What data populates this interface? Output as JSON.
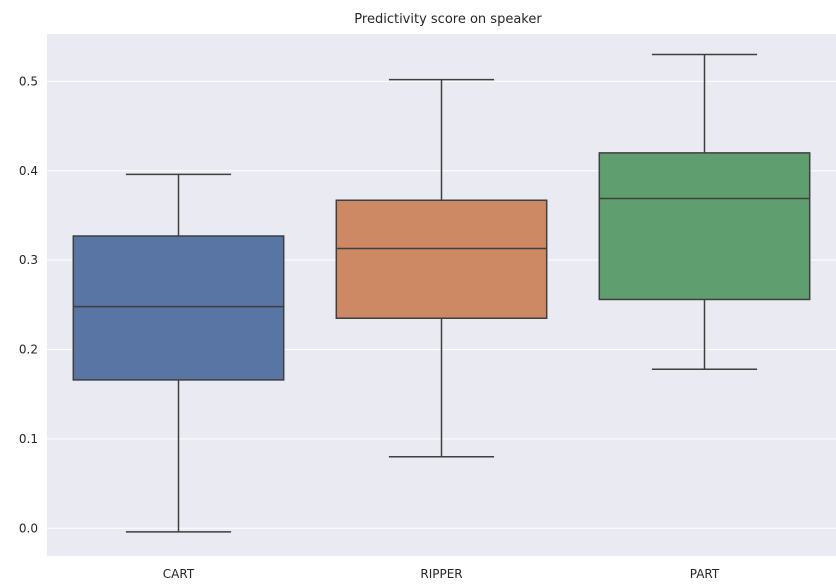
{
  "chart_data": {
    "type": "box",
    "title": "Predictivity score on speaker",
    "xlabel": "",
    "ylabel": "",
    "categories": [
      "CART",
      "RIPPER",
      "PART"
    ],
    "boxes": [
      {
        "name": "CART",
        "whisker_low": -0.004,
        "q1": 0.166,
        "median": 0.248,
        "q3": 0.327,
        "whisker_high": 0.396,
        "color": "#5875a4"
      },
      {
        "name": "RIPPER",
        "whisker_low": 0.08,
        "q1": 0.235,
        "median": 0.313,
        "q3": 0.367,
        "whisker_high": 0.502,
        "color": "#cc8963"
      },
      {
        "name": "PART",
        "whisker_low": 0.178,
        "q1": 0.256,
        "median": 0.369,
        "q3": 0.42,
        "whisker_high": 0.53,
        "color": "#5f9e6e"
      }
    ],
    "yticks": [
      0.0,
      0.1,
      0.2,
      0.3,
      0.4,
      0.5
    ],
    "ytick_labels": [
      "0.0",
      "0.1",
      "0.2",
      "0.3",
      "0.4",
      "0.5"
    ],
    "ylim": [
      -0.031,
      0.553
    ],
    "grid": true,
    "legend": "none",
    "background_color": "#eaeaf2",
    "line_color": "#3f3f3f",
    "grid_color": "#ffffff"
  }
}
